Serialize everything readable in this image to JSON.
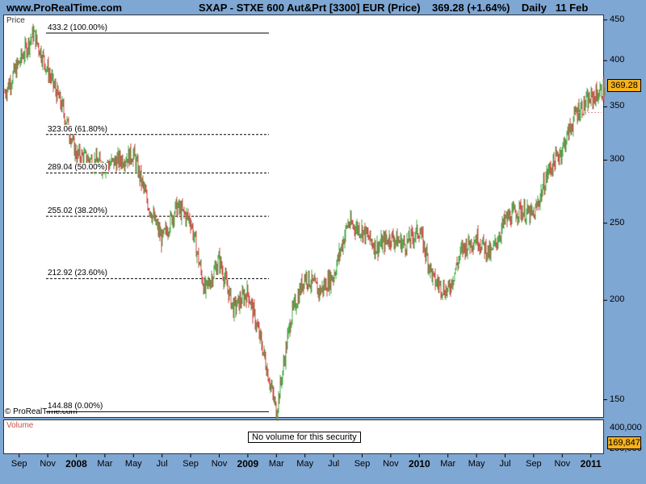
{
  "header": {
    "site": "www.ProRealTime.com",
    "title": "SXAP - STXE 600 Aut&Prt [3300] EUR (Price)    369.28 (+1.64%)    Daily   11 Feb"
  },
  "price_panel": {
    "label": "Price",
    "copyright": "© ProRealTime.com",
    "last_price_badge": "369.28"
  },
  "volume_panel": {
    "label": "Volume",
    "message": "No volume for this security",
    "badge": "169,847",
    "ticks": [
      "400,000",
      "200,000"
    ]
  },
  "colors": {
    "up": "#4caf50",
    "down": "#d0504b",
    "badge": "#f7b11a",
    "background": "#7fa7d3"
  },
  "chart_data": {
    "type": "candlestick",
    "x_axis_labels": [
      "Sep",
      "Nov",
      "2008",
      "Mar",
      "May",
      "Jul",
      "Sep",
      "Nov",
      "2009",
      "Mar",
      "May",
      "Jul",
      "Sep",
      "Nov",
      "2010",
      "Mar",
      "May",
      "Jul",
      "Sep",
      "Nov",
      "2011"
    ],
    "y_axis_ticks": [
      150,
      200,
      250,
      300,
      350,
      400,
      450
    ],
    "y_scale": "log",
    "ylim": [
      143,
      455
    ],
    "last_price": 369.28,
    "fibonacci_levels": [
      {
        "label": "433.2 (100.00%)",
        "value": 433.2
      },
      {
        "label": "323.06 (61.80%)",
        "value": 323.06
      },
      {
        "label": "289.04 (50.00%)",
        "value": 289.04
      },
      {
        "label": "255.02 (38.20%)",
        "value": 255.02
      },
      {
        "label": "212.92 (23.60%)",
        "value": 212.92
      },
      {
        "label": "144.88 (0.00%)",
        "value": 144.88
      }
    ],
    "key_points": [
      {
        "date": "2007-08",
        "price": 365
      },
      {
        "date": "2007-10",
        "price": 433.2
      },
      {
        "date": "2007-12",
        "price": 350
      },
      {
        "date": "2008-01",
        "price": 305
      },
      {
        "date": "2008-03",
        "price": 295
      },
      {
        "date": "2008-05",
        "price": 305
      },
      {
        "date": "2008-06",
        "price": 265
      },
      {
        "date": "2008-07",
        "price": 238
      },
      {
        "date": "2008-08",
        "price": 262
      },
      {
        "date": "2008-09",
        "price": 252
      },
      {
        "date": "2008-10",
        "price": 205
      },
      {
        "date": "2008-11",
        "price": 225
      },
      {
        "date": "2008-12",
        "price": 195
      },
      {
        "date": "2009-01",
        "price": 205
      },
      {
        "date": "2009-02",
        "price": 175
      },
      {
        "date": "2009-03",
        "price": 144.88
      },
      {
        "date": "2009-04",
        "price": 190
      },
      {
        "date": "2009-05",
        "price": 215
      },
      {
        "date": "2009-06",
        "price": 205
      },
      {
        "date": "2009-07",
        "price": 215
      },
      {
        "date": "2009-08",
        "price": 250
      },
      {
        "date": "2009-09",
        "price": 245
      },
      {
        "date": "2009-10",
        "price": 233
      },
      {
        "date": "2009-11",
        "price": 240
      },
      {
        "date": "2009-12",
        "price": 235
      },
      {
        "date": "2010-01",
        "price": 245
      },
      {
        "date": "2010-02",
        "price": 212
      },
      {
        "date": "2010-03",
        "price": 205
      },
      {
        "date": "2010-04",
        "price": 232
      },
      {
        "date": "2010-05",
        "price": 240
      },
      {
        "date": "2010-06",
        "price": 228
      },
      {
        "date": "2010-07",
        "price": 252
      },
      {
        "date": "2010-08",
        "price": 260
      },
      {
        "date": "2010-09",
        "price": 255
      },
      {
        "date": "2010-10",
        "price": 290
      },
      {
        "date": "2010-11",
        "price": 310
      },
      {
        "date": "2010-12",
        "price": 345
      },
      {
        "date": "2011-01",
        "price": 358
      },
      {
        "date": "2011-02",
        "price": 369.28
      }
    ]
  }
}
